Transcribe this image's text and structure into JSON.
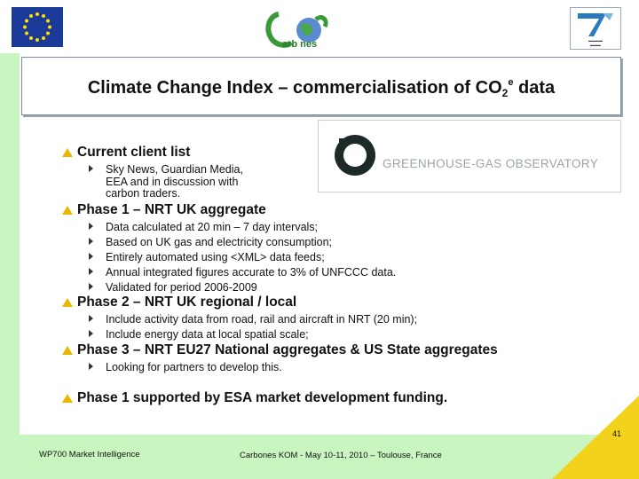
{
  "header": {
    "title_main": "Climate Change Index – commercialisation of CO",
    "title_sub": "2",
    "title_sup": "e",
    "title_end": " data"
  },
  "logos": {
    "carbones_text": "arb nes",
    "ghg_text": "GREENHOUSE-GAS OBSERVATORY"
  },
  "bullets": [
    {
      "text": "Current client list",
      "items": [
        "Sky News, Guardian Media,",
        "EEA and in discussion with",
        "carbon traders."
      ]
    },
    {
      "text": "Phase 1 – NRT UK aggregate",
      "items": [
        "Data calculated at 20 min – 7 day intervals;",
        "Based on UK gas and electricity consumption;",
        "Entirely automated using <XML> data feeds;",
        "Annual integrated figures accurate to 3% of UNFCCC data.",
        "Validated for period 2006-2009"
      ]
    },
    {
      "text": "Phase 2 – NRT UK regional / local",
      "items": [
        "Include activity data from road, rail and aircraft in NRT (20 min);",
        "Include energy data at local spatial scale;"
      ]
    },
    {
      "text": "Phase 3 – NRT EU27 National aggregates & US State aggregates",
      "items": [
        "Looking for partners to develop this."
      ]
    },
    {
      "text": "Phase 1 supported by ESA market development funding.",
      "items": []
    }
  ],
  "footer": {
    "left": "WP700 Market Intelligence",
    "middle": "Carbones KOM  - May 10-11, 2010 – Toulouse, France",
    "page": "41"
  },
  "colors": {
    "accent_yellow": "#e8b800",
    "background_green": "#c8f5c0"
  }
}
